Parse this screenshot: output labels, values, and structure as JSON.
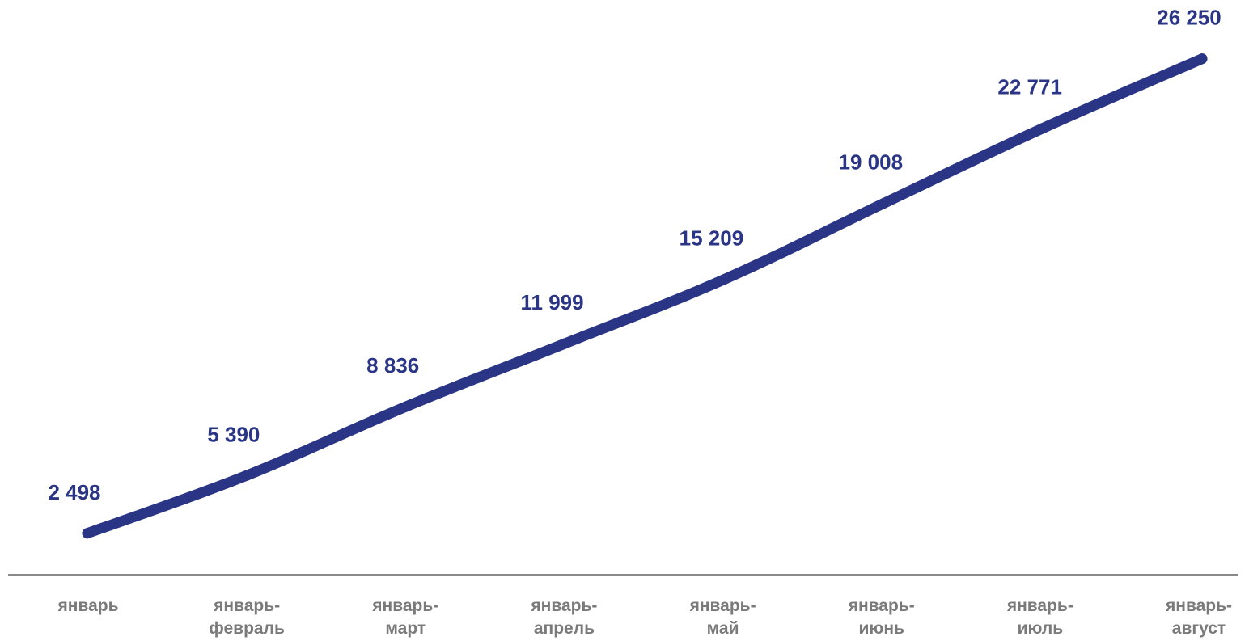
{
  "chart_data": {
    "type": "line",
    "categories": [
      [
        "январь"
      ],
      [
        "январь-",
        "февраль"
      ],
      [
        "январь-",
        "март"
      ],
      [
        "январь-",
        "апрель"
      ],
      [
        "январь-",
        "май"
      ],
      [
        "январь-",
        "июнь"
      ],
      [
        "январь-",
        "июль"
      ],
      [
        "январь-",
        "август"
      ]
    ],
    "series": [
      {
        "values": [
          2498,
          5390,
          8836,
          11999,
          15209,
          19008,
          22771,
          26250
        ],
        "labels": [
          "2 498",
          "5 390",
          "8 836",
          "11 999",
          "15 209",
          "19 008",
          "22 771",
          "26 250"
        ]
      }
    ],
    "title": "",
    "xlabel": "",
    "ylabel": "",
    "ylim": [
      0,
      28000
    ],
    "grid": false,
    "legend": "none",
    "colors": {
      "line": "#2b3585",
      "data_label": "#2b3585",
      "category_label": "#7a7a7a",
      "axis": "#8a8a8a"
    }
  }
}
